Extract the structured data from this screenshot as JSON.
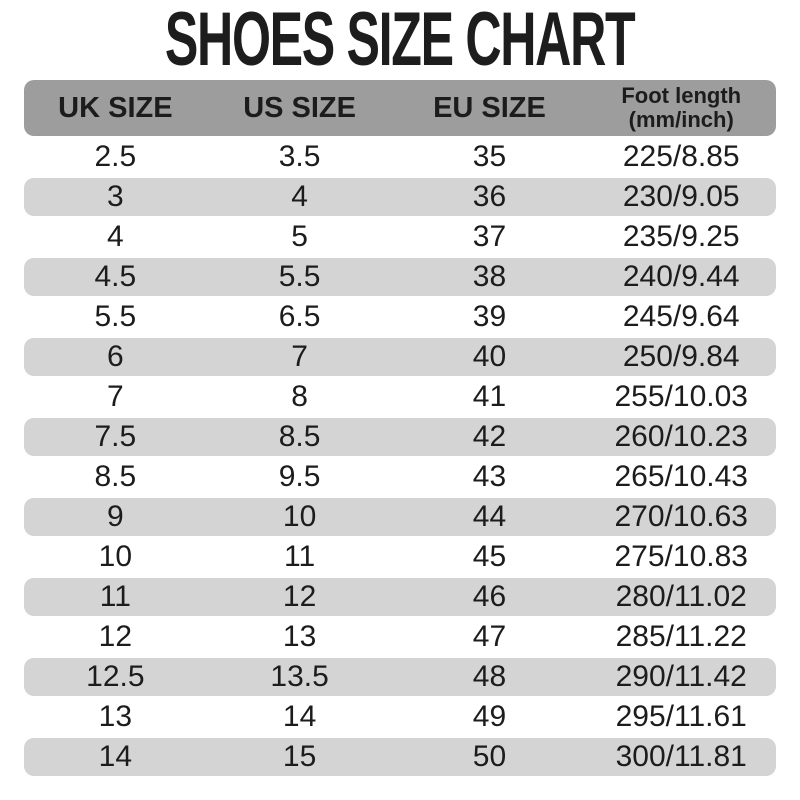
{
  "title": "SHOES SIZE CHART",
  "colors": {
    "background": "#ffffff",
    "header_bg": "#9d9d9d",
    "stripe_bg": "#d4d4d4",
    "text": "#1c1c1c"
  },
  "chart_data": {
    "type": "table",
    "title": "SHOES SIZE CHART",
    "columns": [
      {
        "label": "UK SIZE",
        "sublabel": ""
      },
      {
        "label": "US SIZE",
        "sublabel": ""
      },
      {
        "label": "EU SIZE",
        "sublabel": ""
      },
      {
        "label": "Foot length",
        "sublabel": "(mm/inch)"
      }
    ],
    "rows": [
      [
        "2.5",
        "3.5",
        "35",
        "225/8.85"
      ],
      [
        "3",
        "4",
        "36",
        "230/9.05"
      ],
      [
        "4",
        "5",
        "37",
        "235/9.25"
      ],
      [
        "4.5",
        "5.5",
        "38",
        "240/9.44"
      ],
      [
        "5.5",
        "6.5",
        "39",
        "245/9.64"
      ],
      [
        "6",
        "7",
        "40",
        "250/9.84"
      ],
      [
        "7",
        "8",
        "41",
        "255/10.03"
      ],
      [
        "7.5",
        "8.5",
        "42",
        "260/10.23"
      ],
      [
        "8.5",
        "9.5",
        "43",
        "265/10.43"
      ],
      [
        "9",
        "10",
        "44",
        "270/10.63"
      ],
      [
        "10",
        "11",
        "45",
        "275/10.83"
      ],
      [
        "11",
        "12",
        "46",
        "280/11.02"
      ],
      [
        "12",
        "13",
        "47",
        "285/11.22"
      ],
      [
        "12.5",
        "13.5",
        "48",
        "290/11.42"
      ],
      [
        "13",
        "14",
        "49",
        "295/11.61"
      ],
      [
        "14",
        "15",
        "50",
        "300/11.81"
      ]
    ],
    "layout": {
      "striped": true,
      "stripe_rows": "even rows (2nd, 4th, ...)",
      "legend_position": "none",
      "grid": false
    }
  }
}
